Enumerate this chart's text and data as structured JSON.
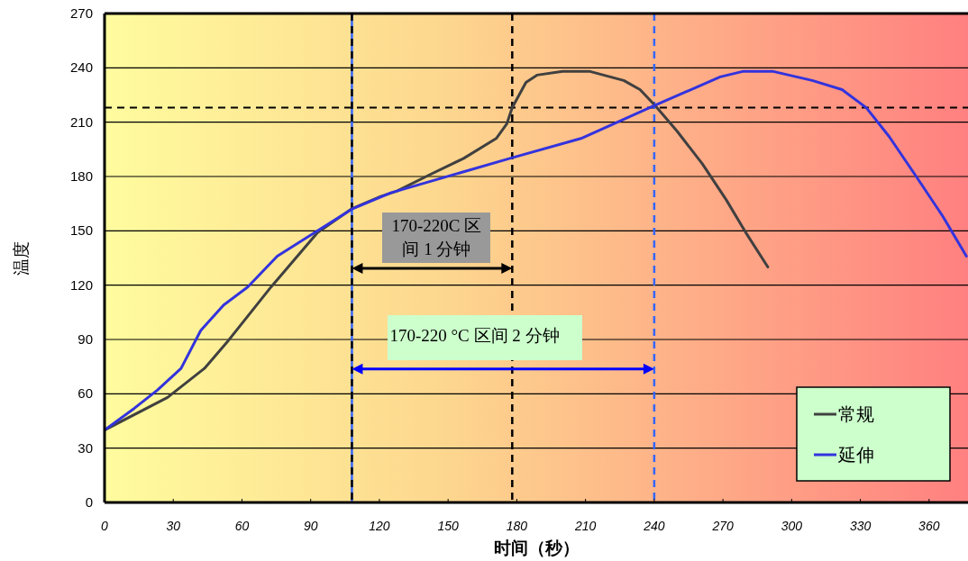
{
  "chart_data": {
    "type": "line",
    "xlabel": "时间（秒）",
    "ylabel": "温度",
    "xlim": [
      0,
      377
    ],
    "ylim": [
      0,
      270
    ],
    "xticks": [
      0,
      30,
      60,
      90,
      120,
      150,
      180,
      210,
      240,
      270,
      300,
      330,
      360
    ],
    "yticks": [
      0,
      30,
      60,
      90,
      120,
      150,
      180,
      210,
      240,
      270
    ],
    "grid": "y",
    "legend": "bottom right",
    "line_style": "solid",
    "series": [
      {
        "name": "常规",
        "color": "#404040",
        "x": [
          0,
          27.5,
          43.6,
          53.8,
          72.7,
          93,
          107.7,
          120.6,
          127.7,
          142,
          156.8,
          171,
          175.6,
          178,
          184,
          188.8,
          200,
          212,
          226.7,
          233.8,
          240.5,
          250,
          261,
          271.5,
          280,
          289.6
        ],
        "values": [
          40,
          58,
          74,
          89,
          119,
          149,
          162,
          169,
          172,
          181,
          190,
          201,
          209,
          218,
          232,
          236,
          238,
          238,
          233,
          228,
          219,
          205,
          187,
          167,
          149,
          130
        ]
      },
      {
        "name": "延伸",
        "color": "#3333dd",
        "x": [
          0,
          13,
          23,
          33.4,
          42,
          52,
          62.5,
          75.4,
          93,
          108,
          125,
          177,
          208,
          239.7,
          268.8,
          278.6,
          292,
          309,
          322,
          332.6,
          342.6,
          354.4,
          366,
          376.3
        ],
        "values": [
          40,
          52,
          62,
          74,
          95,
          109,
          119,
          136,
          150,
          162,
          171,
          190,
          201,
          219,
          235,
          238,
          238,
          233,
          228,
          218,
          202,
          180,
          158,
          136
        ]
      }
    ],
    "ref_lines": [
      {
        "axis": "y",
        "value": 218,
        "color": "#000000",
        "line_style": "dashed"
      },
      {
        "axis": "x",
        "value": 108,
        "color": "#3366ff",
        "line_style": "solid"
      },
      {
        "axis": "x",
        "value": 108,
        "color": "#000000",
        "line_style": "dashed"
      },
      {
        "axis": "x",
        "value": 178,
        "color": "#000000",
        "line_style": "dashed"
      },
      {
        "axis": "x",
        "value": 240,
        "color": "#3366ff",
        "line_style": "dashed"
      }
    ],
    "annotations": [
      "170-220C 区间 1 分钟",
      "170-220 °C 区间 2 分钟"
    ]
  }
}
